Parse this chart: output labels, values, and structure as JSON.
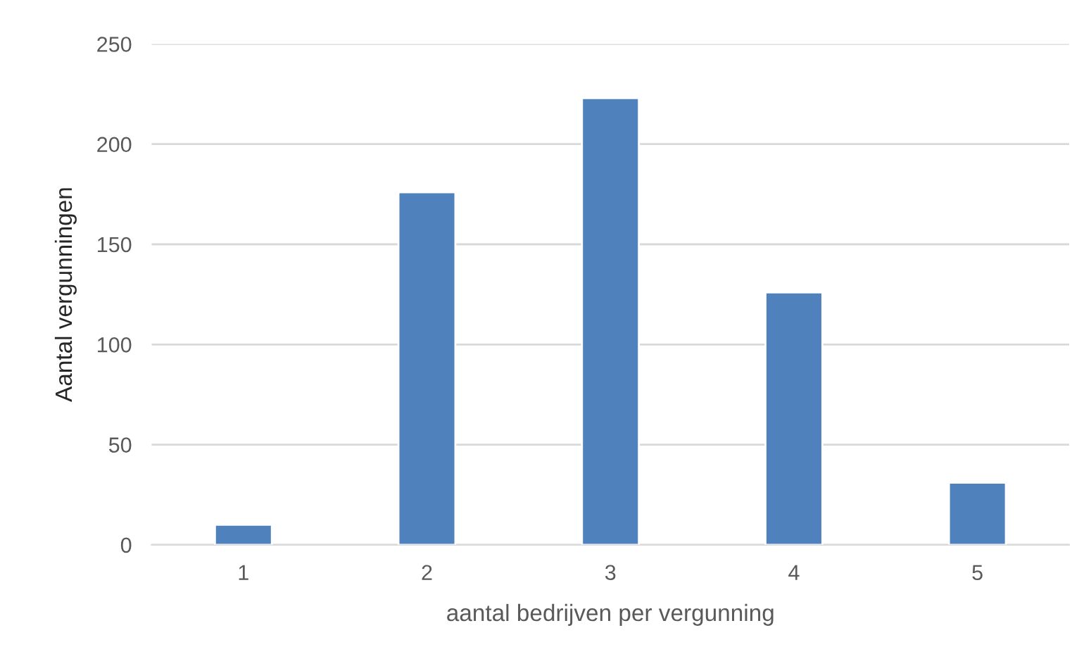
{
  "chart_data": {
    "type": "bar",
    "xlabel": "aantal bedrijven per vergunning",
    "ylabel": "Aantal vergunningen",
    "categories": [
      "1",
      "2",
      "3",
      "4",
      "5"
    ],
    "values": [
      10,
      176,
      223,
      126,
      31
    ],
    "color": "#4f81bd",
    "ylim": [
      0,
      250
    ],
    "yticks": [
      0,
      50,
      100,
      150,
      200,
      250
    ],
    "grid": "y",
    "legend": false
  }
}
